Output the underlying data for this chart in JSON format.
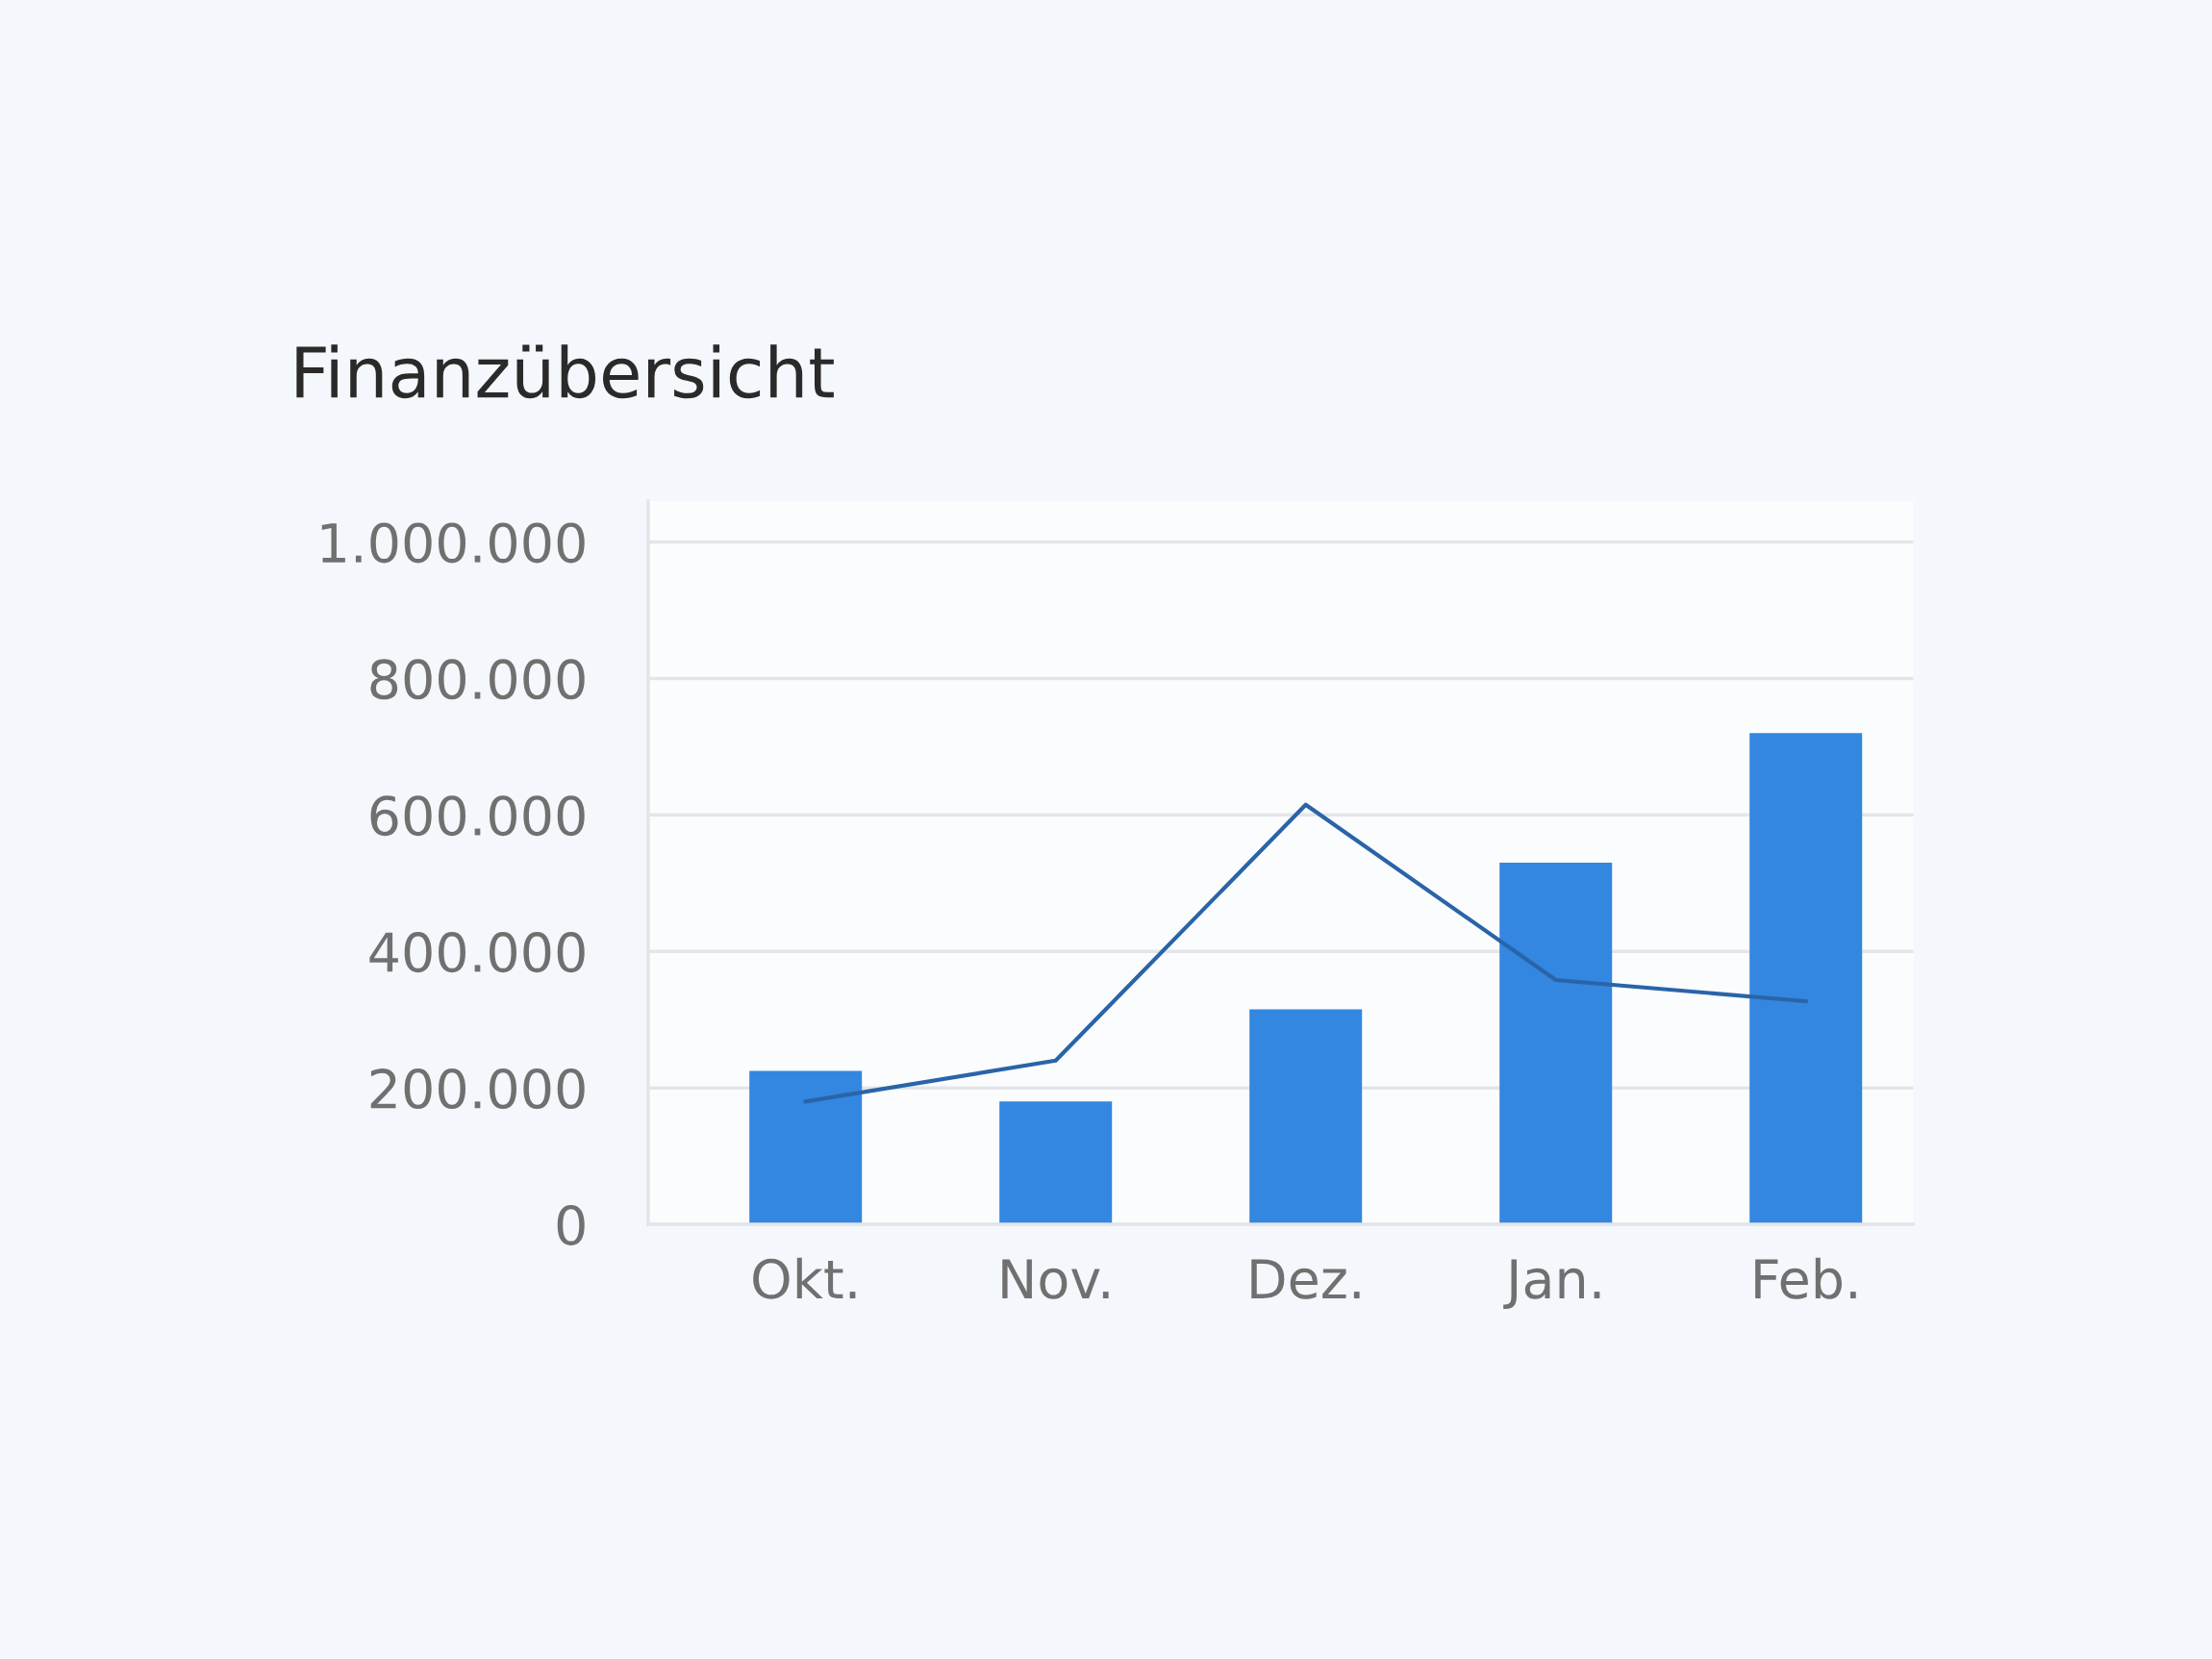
{
  "chart_data": {
    "type": "bar",
    "title": "Finanzübersicht",
    "categories": [
      "Okt.",
      "Nov.",
      "Dez.",
      "Jan.",
      "Feb."
    ],
    "series": [
      {
        "color": "#3387e0",
        "values": [
          225000,
          180000,
          315000,
          530000,
          720000
        ]
      },
      {
        "type": "line",
        "color": "#2a64a8",
        "values": [
          180000,
          240000,
          615000,
          358000,
          327000
        ]
      }
    ],
    "ylim": [
      0,
      1060000
    ],
    "yticks": [
      0,
      {
        "value": 200000,
        "label": "200.000"
      },
      {
        "value": 400000,
        "label": "400.000"
      },
      {
        "value": 600000,
        "label": "600.000"
      },
      {
        "value": 800000,
        "label": "800.000"
      },
      {
        "value": 1000000,
        "label": "1.000.000"
      }
    ],
    "grid": "y",
    "marker": "none",
    "line_style": "solid"
  }
}
